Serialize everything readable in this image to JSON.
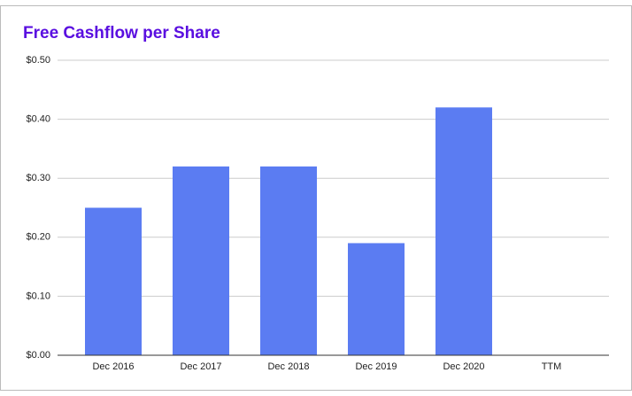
{
  "chart_data": {
    "type": "bar",
    "title": "Free Cashflow per Share",
    "categories": [
      "Dec 2016",
      "Dec 2017",
      "Dec 2018",
      "Dec 2019",
      "Dec 2020",
      "TTM"
    ],
    "values": [
      0.25,
      0.32,
      0.32,
      0.19,
      0.42,
      null
    ],
    "color": "#5b7cf2",
    "ylim": [
      0,
      0.5
    ],
    "yticks": [
      {
        "value": 0,
        "label": "$0.00"
      },
      {
        "value": 0.1,
        "label": "$0.10"
      },
      {
        "value": 0.2,
        "label": "$0.20"
      },
      {
        "value": 0.3,
        "label": "$0.30"
      },
      {
        "value": 0.4,
        "label": "$0.40"
      },
      {
        "value": 0.5,
        "label": "$0.50"
      }
    ],
    "grid": true
  }
}
